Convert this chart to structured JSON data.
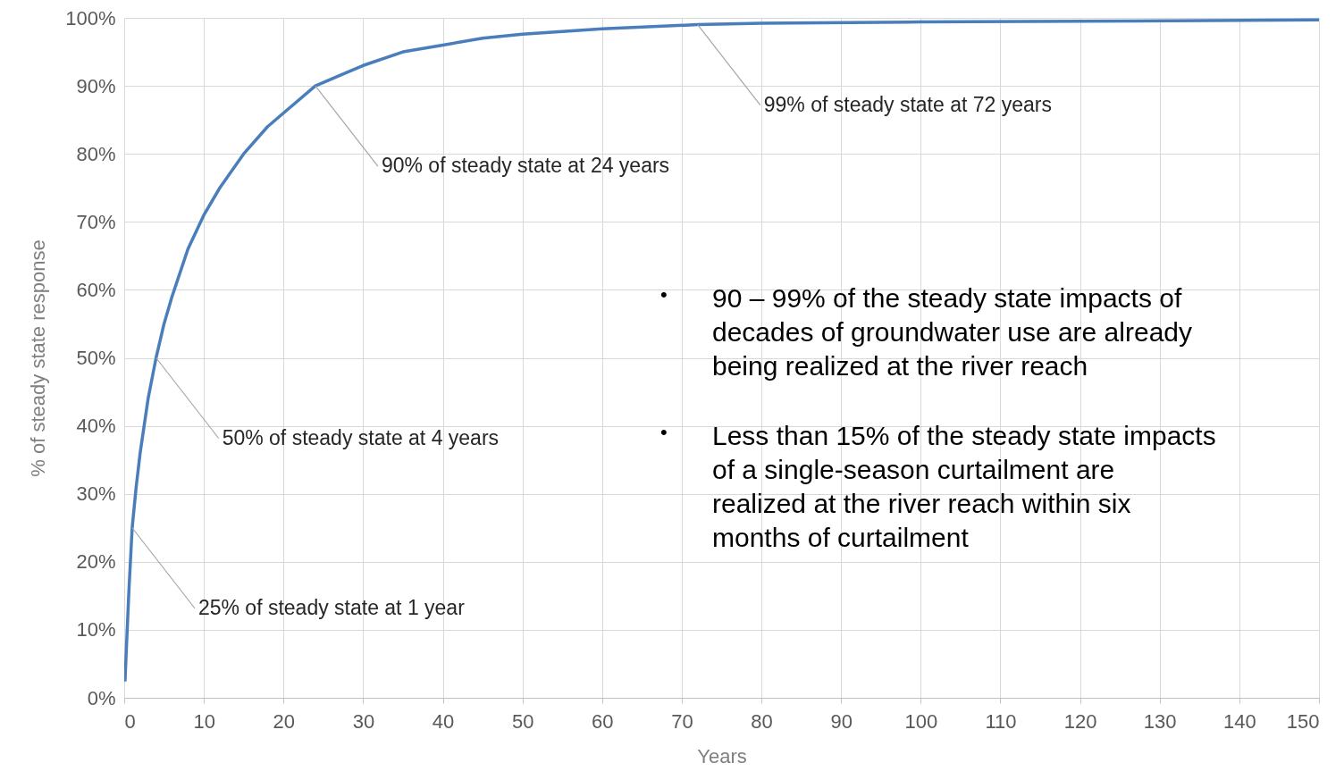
{
  "chart_data": {
    "type": "line",
    "xlabel": "Years",
    "ylabel": "% of steady state response",
    "x": [
      0.1,
      0.3,
      0.6,
      1,
      1.5,
      2,
      3,
      4,
      5,
      6,
      8,
      10,
      12,
      15,
      18,
      20,
      24,
      28,
      30,
      35,
      40,
      45,
      50,
      60,
      72,
      80,
      100,
      120,
      150
    ],
    "series": [
      {
        "color": "#4a7ebb",
        "values": [
          2.4,
          8,
          16,
          25,
          31,
          36,
          44,
          50,
          55,
          59,
          66,
          71,
          75,
          80,
          84,
          86,
          90,
          92,
          93,
          95,
          96,
          97,
          97.6,
          98.4,
          99,
          99.2,
          99.4,
          99.5,
          99.7
        ]
      }
    ],
    "xlim": [
      0,
      150
    ],
    "xticks": [
      0,
      10,
      20,
      30,
      40,
      50,
      60,
      70,
      80,
      90,
      100,
      110,
      120,
      130,
      140,
      150
    ],
    "ylim": [
      0,
      100
    ],
    "yticks": [
      {
        "value": 0,
        "label": "0%"
      },
      {
        "value": 10,
        "label": "10%"
      },
      {
        "value": 20,
        "label": "20%"
      },
      {
        "value": 30,
        "label": "30%"
      },
      {
        "value": 40,
        "label": "40%"
      },
      {
        "value": 50,
        "label": "50%"
      },
      {
        "value": 60,
        "label": "60%"
      },
      {
        "value": 70,
        "label": "70%"
      },
      {
        "value": 80,
        "label": "80%"
      },
      {
        "value": 90,
        "label": "90%"
      },
      {
        "value": 100,
        "label": "100%"
      }
    ],
    "grid": true,
    "marker": "none",
    "line_style": "solid",
    "annotations": [
      {
        "text": "25% of steady state at 1 year",
        "x": 1,
        "y": 25
      },
      {
        "text": "50% of steady state at 4 years",
        "x": 4,
        "y": 50
      },
      {
        "text": "90% of steady state at 24 years",
        "x": 24,
        "y": 90
      },
      {
        "text": "99% of steady state at 72 years",
        "x": 72,
        "y": 99
      },
      "• 90 – 99% of the steady state impacts of decades of groundwater use are already being realized at the river reach",
      "• Less than 15% of the steady state impacts of a single-season curtailment are realized at the river reach within six months of curtailment"
    ]
  }
}
